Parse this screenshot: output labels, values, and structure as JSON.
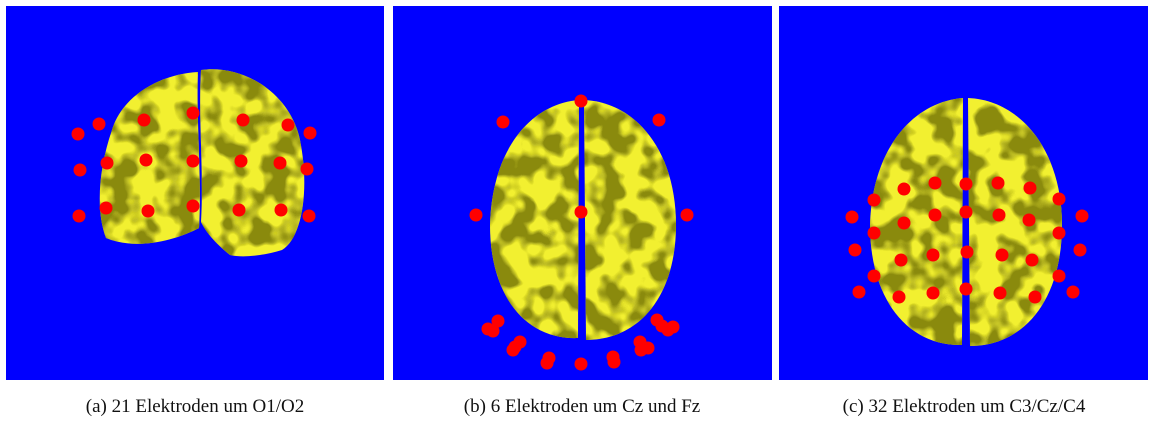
{
  "figure": {
    "captions": [
      "(a) 21 Elektroden um O1/O2",
      "(b) 6 Elektroden um Cz und Fz",
      "(c) 32 Elektroden um C3/Cz/C4"
    ]
  }
}
